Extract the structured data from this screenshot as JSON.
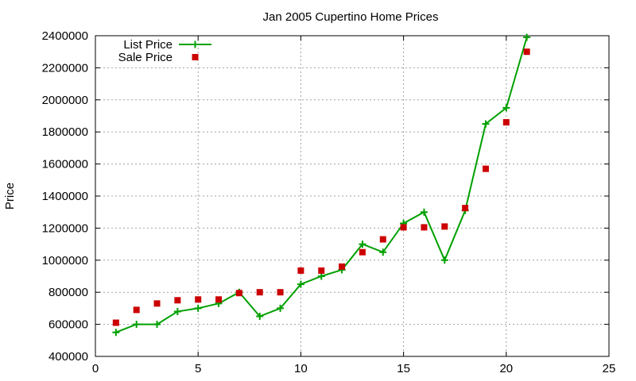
{
  "chart_data": {
    "type": "line",
    "title": "Jan 2005 Cupertino Home Prices",
    "xlabel": "",
    "ylabel": "Price",
    "xlim": [
      0,
      25
    ],
    "ylim": [
      400000,
      2400000
    ],
    "x_ticks": [
      0,
      5,
      10,
      15,
      20,
      25
    ],
    "y_ticks": [
      400000,
      600000,
      800000,
      1000000,
      1200000,
      1400000,
      1600000,
      1800000,
      2000000,
      2200000,
      2400000
    ],
    "grid": true,
    "legend_position": "top-left",
    "series": [
      {
        "name": "List Price",
        "type": "line",
        "color": "#00a000",
        "marker": "plus",
        "x": [
          1,
          2,
          3,
          4,
          5,
          6,
          7,
          8,
          9,
          10,
          11,
          12,
          13,
          14,
          15,
          16,
          17,
          18,
          19,
          20,
          21
        ],
        "values": [
          550000,
          600000,
          600000,
          680000,
          700000,
          730000,
          800000,
          650000,
          700000,
          850000,
          900000,
          940000,
          1100000,
          1050000,
          1230000,
          1300000,
          1000000,
          1310000,
          1850000,
          1950000,
          2390000
        ]
      },
      {
        "name": "Sale Price",
        "type": "scatter",
        "color": "#cc0000",
        "marker": "square",
        "x": [
          1,
          2,
          3,
          4,
          5,
          6,
          7,
          8,
          9,
          10,
          11,
          12,
          13,
          14,
          15,
          16,
          17,
          18,
          19,
          20,
          21
        ],
        "values": [
          610000,
          690000,
          730000,
          750000,
          755000,
          755000,
          795000,
          800000,
          800000,
          935000,
          935000,
          960000,
          1050000,
          1130000,
          1205000,
          1205000,
          1210000,
          1325000,
          1570000,
          1860000,
          2300000
        ]
      }
    ]
  }
}
